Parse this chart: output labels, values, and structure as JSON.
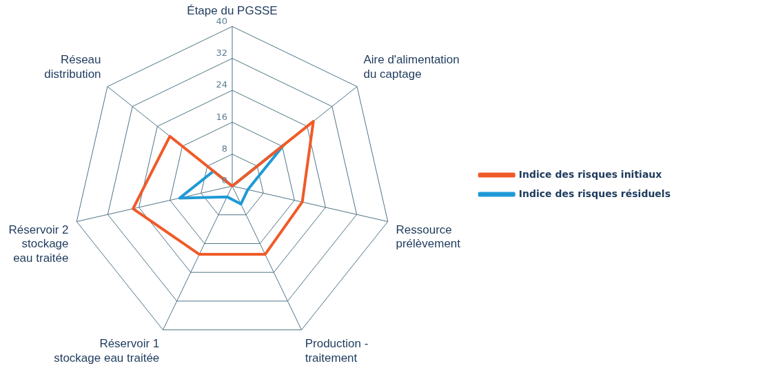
{
  "chart_data": {
    "type": "radar",
    "categories": [
      "Étape du PGSSE",
      "Aire d'alimentation\ndu captage",
      "Ressource\nprélèvement",
      "Production -\ntraitement",
      "Réservoir 1\nstockage eau traitée",
      "Réservoir 2\nstockage\neau traitée",
      "Réseau\ndistribution"
    ],
    "series": [
      {
        "name": "Indice des risques initiaux",
        "color": "#f05a28",
        "values": [
          0,
          26,
          18,
          19,
          19,
          25.5,
          20
        ]
      },
      {
        "name": "Indice des risques résiduels",
        "color": "#1f9ad6",
        "values": [
          0,
          16.5,
          4,
          5,
          3,
          13.5,
          6
        ]
      }
    ],
    "ylim": [
      0,
      40
    ],
    "yticks": [
      0,
      8,
      16,
      24,
      32,
      40
    ],
    "grid": true,
    "legend": "right",
    "marker": "none"
  }
}
